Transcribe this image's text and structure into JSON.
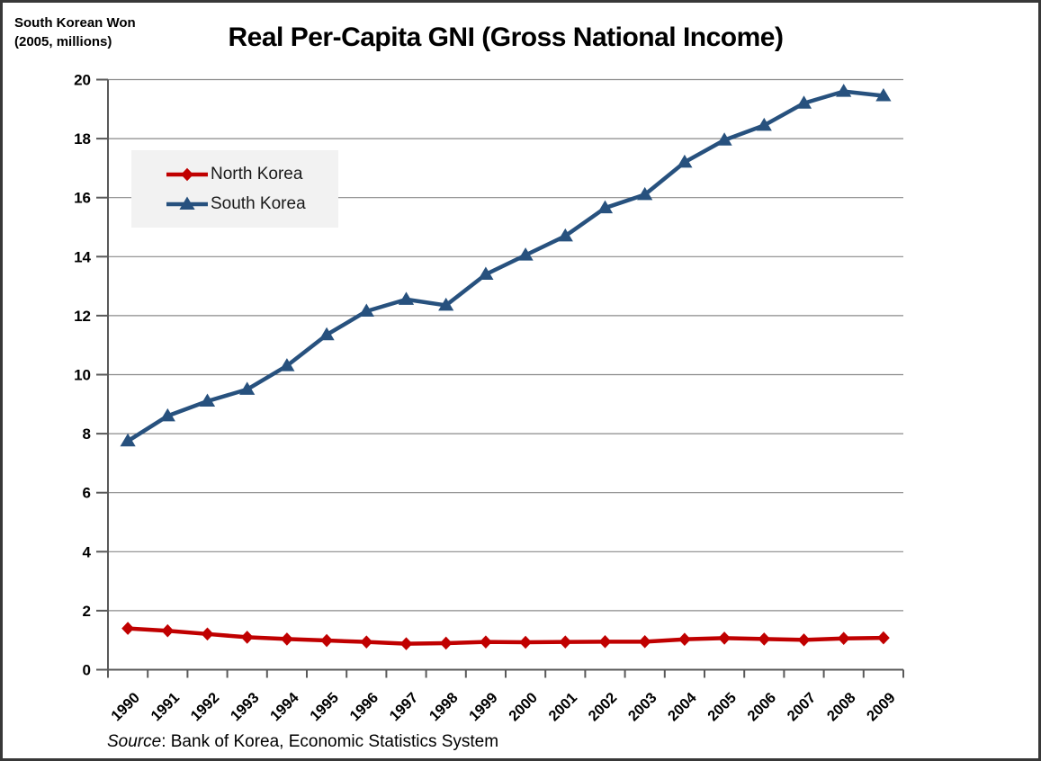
{
  "header": {
    "unit_line1": "South Korean Won",
    "unit_line2": "(2005, millions)"
  },
  "source_note": {
    "label_italic": "Source",
    "rest": ": Bank of Korea, Economic Statistics System"
  },
  "styles": {
    "legend_background": "#f2f2f2",
    "gridline_color": "#8a8a8a",
    "axis_color": "#595959",
    "north_korea_color": "#c00000",
    "south_korea_color": "#27517e"
  },
  "chart_data": {
    "type": "line",
    "title": "Real Per-Capita GNI (Gross National Income)",
    "ylabel": "South Korean Won (2005, millions)",
    "categories": [
      "1990",
      "1991",
      "1992",
      "1993",
      "1994",
      "1995",
      "1996",
      "1997",
      "1998",
      "1999",
      "2000",
      "2001",
      "2002",
      "2003",
      "2004",
      "2005",
      "2006",
      "2007",
      "2008",
      "2009"
    ],
    "series": [
      {
        "name": "North Korea",
        "color": "#c00000",
        "marker": "diamond",
        "values": [
          1.4,
          1.32,
          1.21,
          1.1,
          1.04,
          0.99,
          0.94,
          0.88,
          0.9,
          0.94,
          0.93,
          0.94,
          0.95,
          0.95,
          1.03,
          1.07,
          1.04,
          1.01,
          1.06,
          1.08
        ]
      },
      {
        "name": "South Korea",
        "color": "#27517e",
        "marker": "triangle",
        "values": [
          7.75,
          8.6,
          9.1,
          9.5,
          10.3,
          11.35,
          12.15,
          12.55,
          12.35,
          13.4,
          14.05,
          14.7,
          15.65,
          16.1,
          17.2,
          17.95,
          18.45,
          19.2,
          19.6,
          19.45
        ]
      }
    ],
    "ylim": [
      0,
      20
    ],
    "ytick_step": 2,
    "y_tick_labels": [
      "0",
      "2",
      "4",
      "6",
      "8",
      "10",
      "12",
      "14",
      "16",
      "18",
      "20"
    ],
    "grid": "horizontal-only",
    "legend_position": "inside-upper-left"
  }
}
